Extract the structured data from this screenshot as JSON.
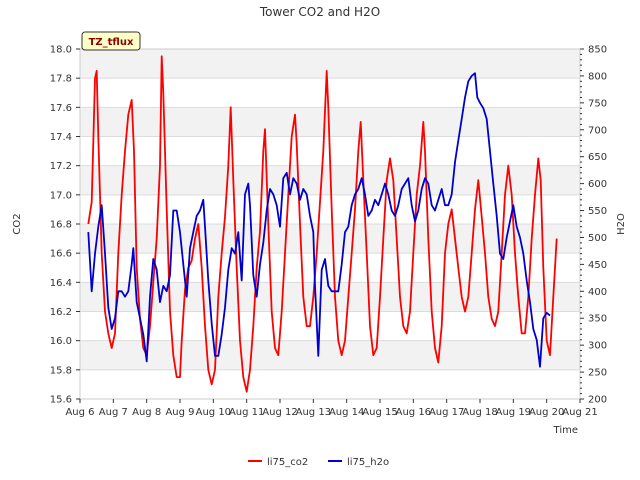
{
  "chart_data": {
    "type": "line",
    "title": "Tower CO2 and H2O",
    "xlabel": "Time",
    "ylabel_left": "CO2",
    "ylabel_right": "H2O",
    "site_badge": "TZ_tflux",
    "x_tick_labels": [
      "Aug 6",
      "Aug 7",
      "Aug 8",
      "Aug 9",
      "Aug 10",
      "Aug 11",
      "Aug 12",
      "Aug 13",
      "Aug 14",
      "Aug 15",
      "Aug 16",
      "Aug 17",
      "Aug 18",
      "Aug 19",
      "Aug 20",
      "Aug 21"
    ],
    "x_range_days": [
      6,
      21
    ],
    "y_left_range": [
      15.6,
      18.0
    ],
    "y_left_ticks": [
      "15.6",
      "15.8",
      "16.0",
      "16.2",
      "16.4",
      "16.6",
      "16.8",
      "17.0",
      "17.2",
      "17.4",
      "17.6",
      "17.8",
      "18.0"
    ],
    "y_right_range": [
      200,
      850
    ],
    "y_right_ticks": [
      "200",
      "250",
      "300",
      "350",
      "400",
      "450",
      "500",
      "550",
      "600",
      "650",
      "700",
      "750",
      "800",
      "850"
    ],
    "legend_position": "bottom-center",
    "series": [
      {
        "name": "li75_co2",
        "axis": "left",
        "color": "#ff0000",
        "points": [
          [
            6.25,
            16.8
          ],
          [
            6.35,
            16.95
          ],
          [
            6.45,
            17.8
          ],
          [
            6.5,
            17.85
          ],
          [
            6.55,
            17.4
          ],
          [
            6.65,
            16.6
          ],
          [
            6.75,
            16.2
          ],
          [
            6.85,
            16.05
          ],
          [
            6.95,
            15.95
          ],
          [
            7.05,
            16.05
          ],
          [
            7.15,
            16.6
          ],
          [
            7.25,
            17.0
          ],
          [
            7.35,
            17.3
          ],
          [
            7.45,
            17.55
          ],
          [
            7.55,
            17.65
          ],
          [
            7.62,
            17.3
          ],
          [
            7.7,
            16.5
          ],
          [
            7.8,
            16.15
          ],
          [
            7.9,
            15.95
          ],
          [
            8.0,
            15.9
          ],
          [
            8.1,
            16.1
          ],
          [
            8.2,
            16.4
          ],
          [
            8.3,
            16.7
          ],
          [
            8.4,
            17.2
          ],
          [
            8.45,
            17.95
          ],
          [
            8.5,
            17.7
          ],
          [
            8.6,
            16.9
          ],
          [
            8.7,
            16.2
          ],
          [
            8.8,
            15.9
          ],
          [
            8.9,
            15.75
          ],
          [
            9.0,
            15.75
          ],
          [
            9.05,
            16.0
          ],
          [
            9.15,
            16.35
          ],
          [
            9.25,
            16.5
          ],
          [
            9.35,
            16.55
          ],
          [
            9.45,
            16.7
          ],
          [
            9.55,
            16.8
          ],
          [
            9.65,
            16.5
          ],
          [
            9.75,
            16.1
          ],
          [
            9.85,
            15.8
          ],
          [
            9.95,
            15.7
          ],
          [
            10.05,
            15.8
          ],
          [
            10.15,
            16.3
          ],
          [
            10.25,
            16.6
          ],
          [
            10.35,
            16.85
          ],
          [
            10.45,
            17.2
          ],
          [
            10.52,
            17.6
          ],
          [
            10.6,
            17.1
          ],
          [
            10.7,
            16.5
          ],
          [
            10.8,
            16.0
          ],
          [
            10.9,
            15.75
          ],
          [
            11.0,
            15.65
          ],
          [
            11.1,
            15.8
          ],
          [
            11.2,
            16.1
          ],
          [
            11.3,
            16.5
          ],
          [
            11.4,
            16.75
          ],
          [
            11.5,
            17.3
          ],
          [
            11.55,
            17.45
          ],
          [
            11.65,
            16.8
          ],
          [
            11.75,
            16.2
          ],
          [
            11.85,
            15.95
          ],
          [
            11.95,
            15.9
          ],
          [
            12.05,
            16.2
          ],
          [
            12.15,
            16.6
          ],
          [
            12.25,
            17.0
          ],
          [
            12.35,
            17.4
          ],
          [
            12.45,
            17.55
          ],
          [
            12.5,
            17.35
          ],
          [
            12.6,
            16.8
          ],
          [
            12.7,
            16.3
          ],
          [
            12.8,
            16.1
          ],
          [
            12.9,
            16.1
          ],
          [
            13.0,
            16.3
          ],
          [
            13.1,
            16.6
          ],
          [
            13.2,
            16.95
          ],
          [
            13.3,
            17.3
          ],
          [
            13.4,
            17.85
          ],
          [
            13.45,
            17.6
          ],
          [
            13.55,
            16.9
          ],
          [
            13.65,
            16.3
          ],
          [
            13.75,
            16.0
          ],
          [
            13.85,
            15.9
          ],
          [
            13.95,
            16.0
          ],
          [
            14.05,
            16.3
          ],
          [
            14.15,
            16.6
          ],
          [
            14.25,
            16.9
          ],
          [
            14.35,
            17.3
          ],
          [
            14.42,
            17.5
          ],
          [
            14.5,
            17.1
          ],
          [
            14.6,
            16.6
          ],
          [
            14.7,
            16.1
          ],
          [
            14.8,
            15.9
          ],
          [
            14.9,
            15.95
          ],
          [
            15.0,
            16.3
          ],
          [
            15.1,
            16.7
          ],
          [
            15.2,
            17.1
          ],
          [
            15.3,
            17.25
          ],
          [
            15.4,
            17.1
          ],
          [
            15.5,
            16.7
          ],
          [
            15.6,
            16.3
          ],
          [
            15.7,
            16.1
          ],
          [
            15.8,
            16.05
          ],
          [
            15.9,
            16.2
          ],
          [
            16.0,
            16.6
          ],
          [
            16.1,
            17.0
          ],
          [
            16.2,
            17.2
          ],
          [
            16.3,
            17.5
          ],
          [
            16.35,
            17.3
          ],
          [
            16.45,
            16.7
          ],
          [
            16.55,
            16.2
          ],
          [
            16.65,
            15.95
          ],
          [
            16.75,
            15.85
          ],
          [
            16.85,
            16.1
          ],
          [
            16.95,
            16.6
          ],
          [
            17.05,
            16.8
          ],
          [
            17.15,
            16.9
          ],
          [
            17.25,
            16.7
          ],
          [
            17.35,
            16.5
          ],
          [
            17.45,
            16.3
          ],
          [
            17.55,
            16.2
          ],
          [
            17.65,
            16.3
          ],
          [
            17.75,
            16.6
          ],
          [
            17.85,
            16.9
          ],
          [
            17.95,
            17.1
          ],
          [
            18.05,
            16.85
          ],
          [
            18.15,
            16.6
          ],
          [
            18.25,
            16.3
          ],
          [
            18.35,
            16.15
          ],
          [
            18.45,
            16.1
          ],
          [
            18.55,
            16.2
          ],
          [
            18.65,
            16.6
          ],
          [
            18.75,
            17.0
          ],
          [
            18.85,
            17.2
          ],
          [
            18.95,
            17.0
          ],
          [
            19.05,
            16.6
          ],
          [
            19.15,
            16.3
          ],
          [
            19.25,
            16.05
          ],
          [
            19.35,
            16.05
          ],
          [
            19.45,
            16.3
          ],
          [
            19.55,
            16.7
          ],
          [
            19.65,
            17.0
          ],
          [
            19.75,
            17.25
          ],
          [
            19.82,
            17.1
          ],
          [
            19.9,
            16.5
          ],
          [
            20.0,
            16.0
          ],
          [
            20.1,
            15.9
          ],
          [
            20.2,
            16.3
          ],
          [
            20.3,
            16.7
          ]
        ]
      },
      {
        "name": "li75_h2o",
        "axis": "right",
        "color": "#0000cc",
        "points": [
          [
            6.25,
            510
          ],
          [
            6.35,
            400
          ],
          [
            6.45,
            470
          ],
          [
            6.55,
            520
          ],
          [
            6.65,
            560
          ],
          [
            6.75,
            470
          ],
          [
            6.85,
            370
          ],
          [
            6.95,
            330
          ],
          [
            7.05,
            350
          ],
          [
            7.15,
            400
          ],
          [
            7.25,
            400
          ],
          [
            7.35,
            390
          ],
          [
            7.45,
            400
          ],
          [
            7.55,
            450
          ],
          [
            7.6,
            480
          ],
          [
            7.7,
            380
          ],
          [
            7.8,
            350
          ],
          [
            7.9,
            320
          ],
          [
            8.0,
            270
          ],
          [
            8.1,
            390
          ],
          [
            8.2,
            460
          ],
          [
            8.3,
            440
          ],
          [
            8.4,
            380
          ],
          [
            8.5,
            410
          ],
          [
            8.6,
            400
          ],
          [
            8.7,
            430
          ],
          [
            8.8,
            550
          ],
          [
            8.9,
            550
          ],
          [
            9.0,
            510
          ],
          [
            9.1,
            450
          ],
          [
            9.2,
            390
          ],
          [
            9.3,
            480
          ],
          [
            9.4,
            510
          ],
          [
            9.5,
            540
          ],
          [
            9.6,
            550
          ],
          [
            9.7,
            570
          ],
          [
            9.75,
            520
          ],
          [
            9.85,
            420
          ],
          [
            9.95,
            340
          ],
          [
            10.05,
            280
          ],
          [
            10.15,
            280
          ],
          [
            10.25,
            320
          ],
          [
            10.35,
            370
          ],
          [
            10.45,
            440
          ],
          [
            10.55,
            480
          ],
          [
            10.65,
            470
          ],
          [
            10.75,
            510
          ],
          [
            10.85,
            420
          ],
          [
            10.95,
            580
          ],
          [
            11.05,
            600
          ],
          [
            11.1,
            560
          ],
          [
            11.2,
            430
          ],
          [
            11.3,
            390
          ],
          [
            11.4,
            450
          ],
          [
            11.5,
            490
          ],
          [
            11.6,
            550
          ],
          [
            11.7,
            590
          ],
          [
            11.8,
            580
          ],
          [
            11.9,
            560
          ],
          [
            12.0,
            520
          ],
          [
            12.1,
            610
          ],
          [
            12.2,
            620
          ],
          [
            12.3,
            580
          ],
          [
            12.4,
            610
          ],
          [
            12.5,
            600
          ],
          [
            12.6,
            570
          ],
          [
            12.7,
            590
          ],
          [
            12.8,
            580
          ],
          [
            12.9,
            540
          ],
          [
            13.0,
            510
          ],
          [
            13.05,
            410
          ],
          [
            13.15,
            280
          ],
          [
            13.25,
            440
          ],
          [
            13.35,
            460
          ],
          [
            13.45,
            410
          ],
          [
            13.55,
            400
          ],
          [
            13.65,
            400
          ],
          [
            13.75,
            400
          ],
          [
            13.85,
            450
          ],
          [
            13.95,
            510
          ],
          [
            14.05,
            520
          ],
          [
            14.15,
            560
          ],
          [
            14.25,
            580
          ],
          [
            14.35,
            590
          ],
          [
            14.45,
            610
          ],
          [
            14.55,
            580
          ],
          [
            14.65,
            540
          ],
          [
            14.75,
            550
          ],
          [
            14.85,
            570
          ],
          [
            14.95,
            560
          ],
          [
            15.05,
            580
          ],
          [
            15.15,
            600
          ],
          [
            15.25,
            580
          ],
          [
            15.35,
            550
          ],
          [
            15.45,
            540
          ],
          [
            15.55,
            560
          ],
          [
            15.65,
            590
          ],
          [
            15.75,
            600
          ],
          [
            15.85,
            610
          ],
          [
            15.95,
            560
          ],
          [
            16.05,
            530
          ],
          [
            16.15,
            550
          ],
          [
            16.25,
            590
          ],
          [
            16.35,
            610
          ],
          [
            16.45,
            600
          ],
          [
            16.55,
            560
          ],
          [
            16.65,
            550
          ],
          [
            16.75,
            570
          ],
          [
            16.85,
            590
          ],
          [
            16.95,
            560
          ],
          [
            17.05,
            560
          ],
          [
            17.15,
            580
          ],
          [
            17.25,
            640
          ],
          [
            17.35,
            680
          ],
          [
            17.45,
            720
          ],
          [
            17.55,
            760
          ],
          [
            17.65,
            790
          ],
          [
            17.75,
            800
          ],
          [
            17.85,
            805
          ],
          [
            17.92,
            760
          ],
          [
            18.0,
            750
          ],
          [
            18.1,
            740
          ],
          [
            18.2,
            720
          ],
          [
            18.3,
            660
          ],
          [
            18.4,
            600
          ],
          [
            18.5,
            540
          ],
          [
            18.6,
            470
          ],
          [
            18.7,
            460
          ],
          [
            18.8,
            500
          ],
          [
            18.9,
            530
          ],
          [
            19.0,
            560
          ],
          [
            19.1,
            520
          ],
          [
            19.2,
            500
          ],
          [
            19.3,
            470
          ],
          [
            19.4,
            420
          ],
          [
            19.5,
            380
          ],
          [
            19.6,
            330
          ],
          [
            19.7,
            310
          ],
          [
            19.8,
            260
          ],
          [
            19.9,
            350
          ],
          [
            20.0,
            360
          ],
          [
            20.1,
            355
          ]
        ]
      }
    ]
  }
}
